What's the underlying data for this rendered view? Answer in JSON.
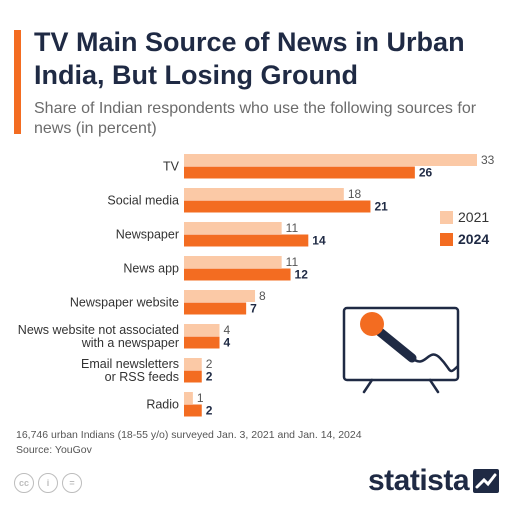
{
  "title": "TV Main Source of News in Urban India, But Losing Ground",
  "subtitle": "Share of Indian respondents who use the following sources for news (in percent)",
  "colors": {
    "accent": "#f36c21",
    "series_2021": "#fbc9a6",
    "series_2024": "#f36c21",
    "title": "#1f2a44"
  },
  "chart_data": {
    "type": "bar",
    "orientation": "horizontal",
    "title": "TV Main Source of News in Urban India, But Losing Ground",
    "subtitle": "Share of Indian respondents who use the following sources for news (in percent)",
    "categories": [
      [
        "TV"
      ],
      [
        "Social media"
      ],
      [
        "Newspaper"
      ],
      [
        "News app"
      ],
      [
        "Newspaper website"
      ],
      [
        "News website not associated",
        "with a newspaper"
      ],
      [
        "Email newsletters",
        "or RSS feeds"
      ],
      [
        "Radio"
      ]
    ],
    "series": [
      {
        "name": "2021",
        "values": [
          33,
          18,
          11,
          11,
          8,
          4,
          2,
          1
        ]
      },
      {
        "name": "2024",
        "values": [
          26,
          21,
          14,
          12,
          7,
          4,
          2,
          2
        ]
      }
    ],
    "xlim": [
      0,
      33
    ],
    "grid": false,
    "legend_position": "right"
  },
  "legend": {
    "label_2021": "2021",
    "label_2024": "2024"
  },
  "footnote": {
    "survey": "16,746 urban Indians (18-55 y/o) surveyed Jan. 3, 2021 and Jan. 14, 2024",
    "source": "Source: YouGov"
  },
  "license_icons": [
    "cc",
    "i",
    "="
  ],
  "brand": "statista",
  "icons": {
    "illustration": "tv-microphone-icon",
    "brand_logo": "statista-logo-icon"
  }
}
